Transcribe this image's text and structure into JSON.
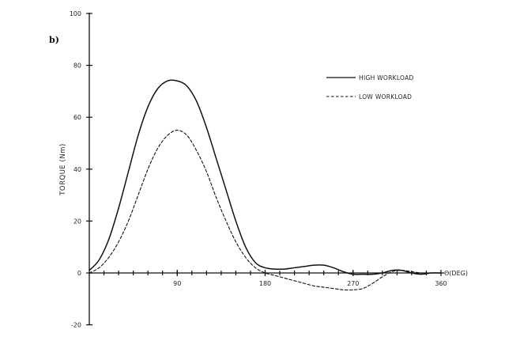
{
  "panel_label": "b)",
  "chart_data": {
    "type": "line",
    "ylabel": "TORQUE   (Nm)",
    "xlabel": "Θ(DEG)",
    "xlim": [
      0,
      360
    ],
    "ylim": [
      -20,
      100
    ],
    "x_ticks": [
      90,
      180,
      270,
      360
    ],
    "x_tick_labels": [
      "90",
      "180",
      "270",
      "360"
    ],
    "y_ticks": [
      -20,
      0,
      20,
      40,
      60,
      80,
      100
    ],
    "y_tick_labels": [
      "-20",
      "0",
      "20",
      "40",
      "60",
      "80",
      "100"
    ],
    "legend_position": "top-right",
    "grid": false,
    "series": [
      {
        "name": "HIGH WORKLOAD",
        "style": "solid",
        "x": [
          0,
          10,
          20,
          30,
          40,
          50,
          60,
          70,
          80,
          90,
          100,
          110,
          120,
          130,
          140,
          150,
          160,
          170,
          180,
          190,
          200,
          210,
          220,
          230,
          240,
          250,
          260,
          270,
          280,
          290,
          300,
          310,
          320,
          330,
          340,
          350,
          360
        ],
        "values": [
          1,
          5,
          13,
          25,
          39,
          53,
          64,
          71,
          74,
          74,
          72,
          66,
          56,
          44,
          32,
          20,
          10,
          4,
          2,
          1.5,
          1.5,
          2,
          2.5,
          3,
          3,
          2,
          0.5,
          -0.5,
          -0.5,
          -0.5,
          0,
          1,
          1,
          0,
          -0.5,
          0,
          0
        ]
      },
      {
        "name": "LOW WORKLOAD",
        "style": "dashed",
        "x": [
          0,
          10,
          20,
          30,
          40,
          50,
          60,
          70,
          80,
          90,
          100,
          110,
          120,
          130,
          140,
          150,
          160,
          170,
          180,
          190,
          200,
          210,
          220,
          230,
          240,
          250,
          260,
          270,
          280,
          290,
          300,
          310,
          320,
          330,
          340,
          350,
          360
        ],
        "values": [
          0,
          2,
          6,
          12,
          20,
          30,
          40,
          48,
          53,
          55,
          53,
          47,
          39,
          29,
          20,
          12,
          6,
          2,
          0,
          -1,
          -2,
          -3,
          -4,
          -5,
          -5.5,
          -6,
          -6.5,
          -6.5,
          -6,
          -4,
          -1.5,
          0.5,
          1,
          0.5,
          0,
          0,
          0
        ]
      }
    ]
  }
}
